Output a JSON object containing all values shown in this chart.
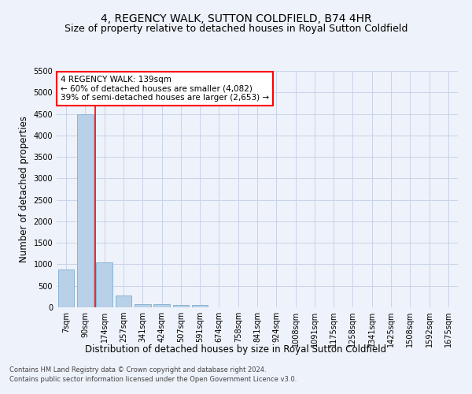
{
  "title": "4, REGENCY WALK, SUTTON COLDFIELD, B74 4HR",
  "subtitle": "Size of property relative to detached houses in Royal Sutton Coldfield",
  "xlabel": "Distribution of detached houses by size in Royal Sutton Coldfield",
  "ylabel": "Number of detached properties",
  "footnote1": "Contains HM Land Registry data © Crown copyright and database right 2024.",
  "footnote2": "Contains public sector information licensed under the Open Government Licence v3.0.",
  "categories": [
    "7sqm",
    "90sqm",
    "174sqm",
    "257sqm",
    "341sqm",
    "424sqm",
    "507sqm",
    "591sqm",
    "674sqm",
    "758sqm",
    "841sqm",
    "924sqm",
    "1008sqm",
    "1091sqm",
    "1175sqm",
    "1258sqm",
    "1341sqm",
    "1425sqm",
    "1508sqm",
    "1592sqm",
    "1675sqm"
  ],
  "values": [
    880,
    4500,
    1050,
    280,
    80,
    75,
    55,
    50,
    0,
    0,
    0,
    0,
    0,
    0,
    0,
    0,
    0,
    0,
    0,
    0,
    0
  ],
  "bar_color": "#b8d0e8",
  "bar_edge_color": "#8ab4d4",
  "grid_color": "#c8d4e8",
  "bg_color": "#eef2fa",
  "vline_color": "red",
  "vline_position": 1.5,
  "annotation_box_text": "4 REGENCY WALK: 139sqm\n← 60% of detached houses are smaller (4,082)\n39% of semi-detached houses are larger (2,653) →",
  "ylim": [
    0,
    5500
  ],
  "yticks": [
    0,
    500,
    1000,
    1500,
    2000,
    2500,
    3000,
    3500,
    4000,
    4500,
    5000,
    5500
  ],
  "title_fontsize": 10,
  "subtitle_fontsize": 9,
  "xlabel_fontsize": 8.5,
  "ylabel_fontsize": 8.5,
  "tick_fontsize": 7,
  "annot_fontsize": 7.5
}
